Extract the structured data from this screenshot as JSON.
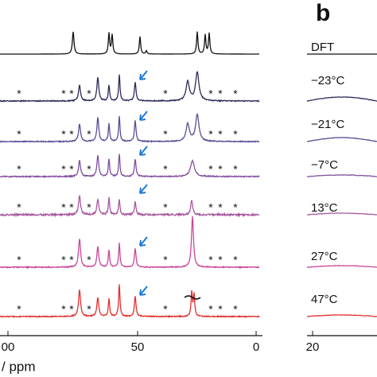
{
  "panel_label": "b",
  "x_axis": {
    "ticks": [
      "00",
      "50",
      "0"
    ],
    "label": "/ ppm"
  },
  "right_axis": {
    "ticks": [
      "20"
    ]
  },
  "peak_marker": "*",
  "traces": [
    "DFT",
    "−23°C",
    "−21°C",
    "−7°C",
    "13°C",
    "27°C",
    "47°C"
  ]
}
